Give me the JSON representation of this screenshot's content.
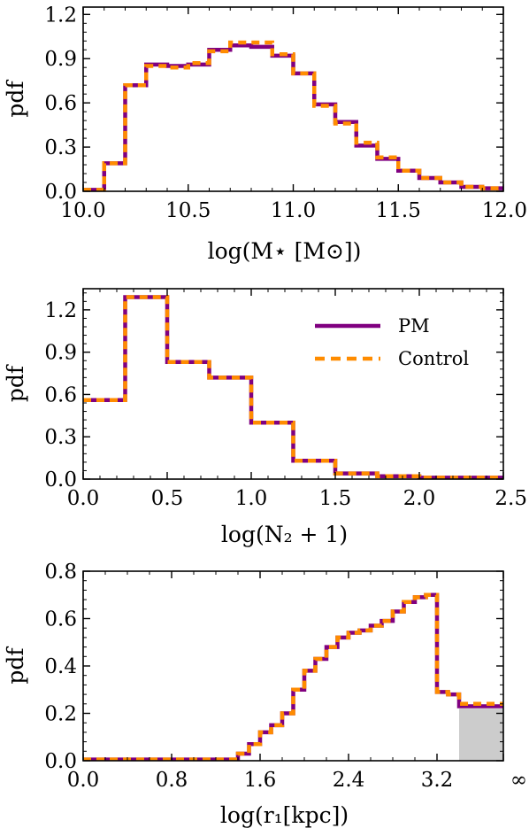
{
  "colors": {
    "pm": "#800080",
    "control": "#ff8c00",
    "shade": "#cccccc",
    "axis": "#000000"
  },
  "legend": {
    "placement": "upper-right",
    "panel": 1,
    "entries": [
      {
        "label": "PM",
        "style": "solid",
        "color": "#800080"
      },
      {
        "label": "Control",
        "style": "dashed",
        "color": "#ff8c00"
      }
    ]
  },
  "chart_data": [
    {
      "type": "histogram-step",
      "ylabel": "pdf",
      "xlabel": "log(M⋆ [M⊙])",
      "xlim": [
        10.0,
        12.0
      ],
      "ylim": [
        0.0,
        1.25
      ],
      "xticks": [
        10.0,
        10.5,
        11.0,
        11.5,
        12.0
      ],
      "xtick_labels": [
        "10.0",
        "10.5",
        "11.0",
        "11.5",
        "12.0"
      ],
      "yticks": [
        0.0,
        0.3,
        0.6,
        0.9,
        1.2
      ],
      "ytick_labels": [
        "0.0",
        "0.3",
        "0.6",
        "0.9",
        "1.2"
      ],
      "bin_edges": [
        10.0,
        10.1,
        10.2,
        10.3,
        10.4,
        10.5,
        10.6,
        10.7,
        10.8,
        10.9,
        11.0,
        11.1,
        11.2,
        11.3,
        11.4,
        11.5,
        11.6,
        11.7,
        11.8,
        11.9,
        12.0
      ],
      "series": [
        {
          "name": "PM",
          "values": [
            0.01,
            0.19,
            0.72,
            0.86,
            0.85,
            0.86,
            0.96,
            0.99,
            0.98,
            0.92,
            0.8,
            0.59,
            0.47,
            0.31,
            0.22,
            0.14,
            0.09,
            0.06,
            0.03,
            0.02
          ]
        },
        {
          "name": "Control",
          "values": [
            0.01,
            0.19,
            0.72,
            0.85,
            0.84,
            0.87,
            0.95,
            1.01,
            1.01,
            0.93,
            0.8,
            0.58,
            0.46,
            0.33,
            0.23,
            0.14,
            0.09,
            0.06,
            0.03,
            0.02
          ]
        }
      ]
    },
    {
      "type": "histogram-step",
      "ylabel": "pdf",
      "xlabel": "log(N₂ + 1)",
      "xlim": [
        0.0,
        2.5
      ],
      "ylim": [
        0.0,
        1.35
      ],
      "xticks": [
        0.0,
        0.5,
        1.0,
        1.5,
        2.0,
        2.5
      ],
      "xtick_labels": [
        "0.0",
        "0.5",
        "1.0",
        "1.5",
        "2.0",
        "2.5"
      ],
      "yticks": [
        0.0,
        0.3,
        0.6,
        0.9,
        1.2
      ],
      "ytick_labels": [
        "0.0",
        "0.3",
        "0.6",
        "0.9",
        "1.2"
      ],
      "bin_edges": [
        0.0,
        0.25,
        0.5,
        0.75,
        1.0,
        1.25,
        1.5,
        1.75,
        2.0,
        2.25,
        2.5
      ],
      "series": [
        {
          "name": "PM",
          "values": [
            0.56,
            1.29,
            0.83,
            0.72,
            0.4,
            0.13,
            0.04,
            0.02,
            0.01,
            0.01
          ]
        },
        {
          "name": "Control",
          "values": [
            0.56,
            1.29,
            0.83,
            0.72,
            0.4,
            0.13,
            0.04,
            0.02,
            0.01,
            0.01
          ]
        }
      ]
    },
    {
      "type": "histogram-step",
      "ylabel": "pdf",
      "xlabel": "log(r₁[kpc])",
      "xlim": [
        0.0,
        3.8
      ],
      "ylim": [
        0.0,
        0.8
      ],
      "xticks": [
        0.0,
        0.8,
        1.6,
        2.4,
        3.2,
        3.8
      ],
      "xtick_labels": [
        "0.0",
        "0.8",
        "1.6",
        "2.4",
        "3.2",
        "∞"
      ],
      "yticks": [
        0.0,
        0.2,
        0.4,
        0.6,
        0.8
      ],
      "ytick_labels": [
        "0.0",
        "0.2",
        "0.4",
        "0.6",
        "0.8"
      ],
      "shaded_region": {
        "x": [
          3.4,
          3.8
        ],
        "y_top": 0.22
      },
      "bin_edges": [
        0.0,
        0.1,
        0.2,
        0.3,
        0.4,
        0.5,
        0.6,
        0.7,
        0.8,
        0.9,
        1.0,
        1.1,
        1.2,
        1.3,
        1.4,
        1.5,
        1.6,
        1.7,
        1.8,
        1.9,
        2.0,
        2.1,
        2.2,
        2.3,
        2.4,
        2.5,
        2.6,
        2.7,
        2.8,
        2.9,
        3.0,
        3.1,
        3.2,
        3.3,
        3.4,
        3.8
      ],
      "series": [
        {
          "name": "PM",
          "values": [
            0.005,
            0.005,
            0.005,
            0.005,
            0.005,
            0.005,
            0.005,
            0.005,
            0.005,
            0.005,
            0.005,
            0.005,
            0.005,
            0.005,
            0.03,
            0.07,
            0.12,
            0.15,
            0.2,
            0.3,
            0.38,
            0.43,
            0.48,
            0.52,
            0.54,
            0.55,
            0.57,
            0.59,
            0.63,
            0.67,
            0.69,
            0.7,
            0.29,
            0.28,
            0.23
          ]
        },
        {
          "name": "Control",
          "values": [
            0.005,
            0.005,
            0.005,
            0.005,
            0.005,
            0.005,
            0.005,
            0.005,
            0.005,
            0.005,
            0.005,
            0.005,
            0.005,
            0.005,
            0.03,
            0.07,
            0.12,
            0.15,
            0.2,
            0.3,
            0.38,
            0.43,
            0.48,
            0.52,
            0.54,
            0.55,
            0.57,
            0.59,
            0.63,
            0.67,
            0.69,
            0.7,
            0.29,
            0.28,
            0.24
          ]
        }
      ]
    }
  ]
}
